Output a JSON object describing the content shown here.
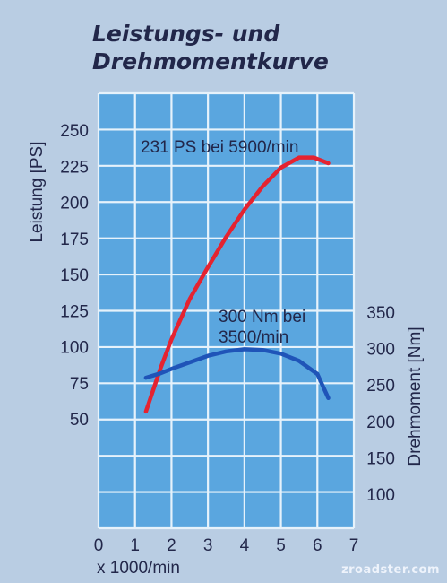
{
  "title_lines": [
    "Leistungs- und",
    "Drehmomentkurve"
  ],
  "watermark": "zroadster.com",
  "colors": {
    "background": "#b9cde3",
    "grid_fill": "#5aa6df",
    "grid_lines": "#e6f2fb",
    "power_series": "#e52330",
    "torque_series": "#1f54b8",
    "text": "#22274a"
  },
  "chart_data": {
    "type": "line",
    "title": "Leistungs- und Drehmomentkurve",
    "xlabel": "x 1000/min",
    "x_ticks": [
      "0",
      "1",
      "2",
      "3",
      "4",
      "5",
      "6",
      "7"
    ],
    "xlim": [
      0,
      7
    ],
    "grid": true,
    "y_left": {
      "label": "Leistung [PS]",
      "ticks": [
        "50",
        "75",
        "100",
        "125",
        "150",
        "175",
        "200",
        "225",
        "250"
      ],
      "lim": [
        50,
        250
      ]
    },
    "y_right": {
      "label": "Drehmoment [Nm]",
      "ticks": [
        "100",
        "150",
        "200",
        "250",
        "300",
        "350"
      ],
      "lim": [
        100,
        350
      ]
    },
    "series": [
      {
        "id": "power",
        "axis": "left",
        "color": "#e52330",
        "x": [
          1.3,
          1.7,
          2.0,
          2.5,
          3.0,
          3.5,
          4.0,
          4.5,
          5.0,
          5.5,
          5.9,
          6.3
        ],
        "y": [
          55,
          85,
          105,
          133,
          155,
          176,
          195,
          211,
          224,
          231,
          231,
          227
        ]
      },
      {
        "id": "torque",
        "axis": "right",
        "color": "#1f54b8",
        "x": [
          1.3,
          1.7,
          2.0,
          2.5,
          3.0,
          3.5,
          4.0,
          4.5,
          5.0,
          5.5,
          6.0,
          6.3
        ],
        "y": [
          260,
          266,
          272,
          281,
          290,
          296,
          299,
          298,
          293,
          283,
          265,
          232
        ]
      }
    ],
    "annotations": [
      {
        "id": "power-peak",
        "lines": [
          "231 PS bei 5900/min"
        ]
      },
      {
        "id": "torque-peak",
        "lines": [
          "300 Nm bei",
          "3500/min"
        ]
      }
    ]
  }
}
